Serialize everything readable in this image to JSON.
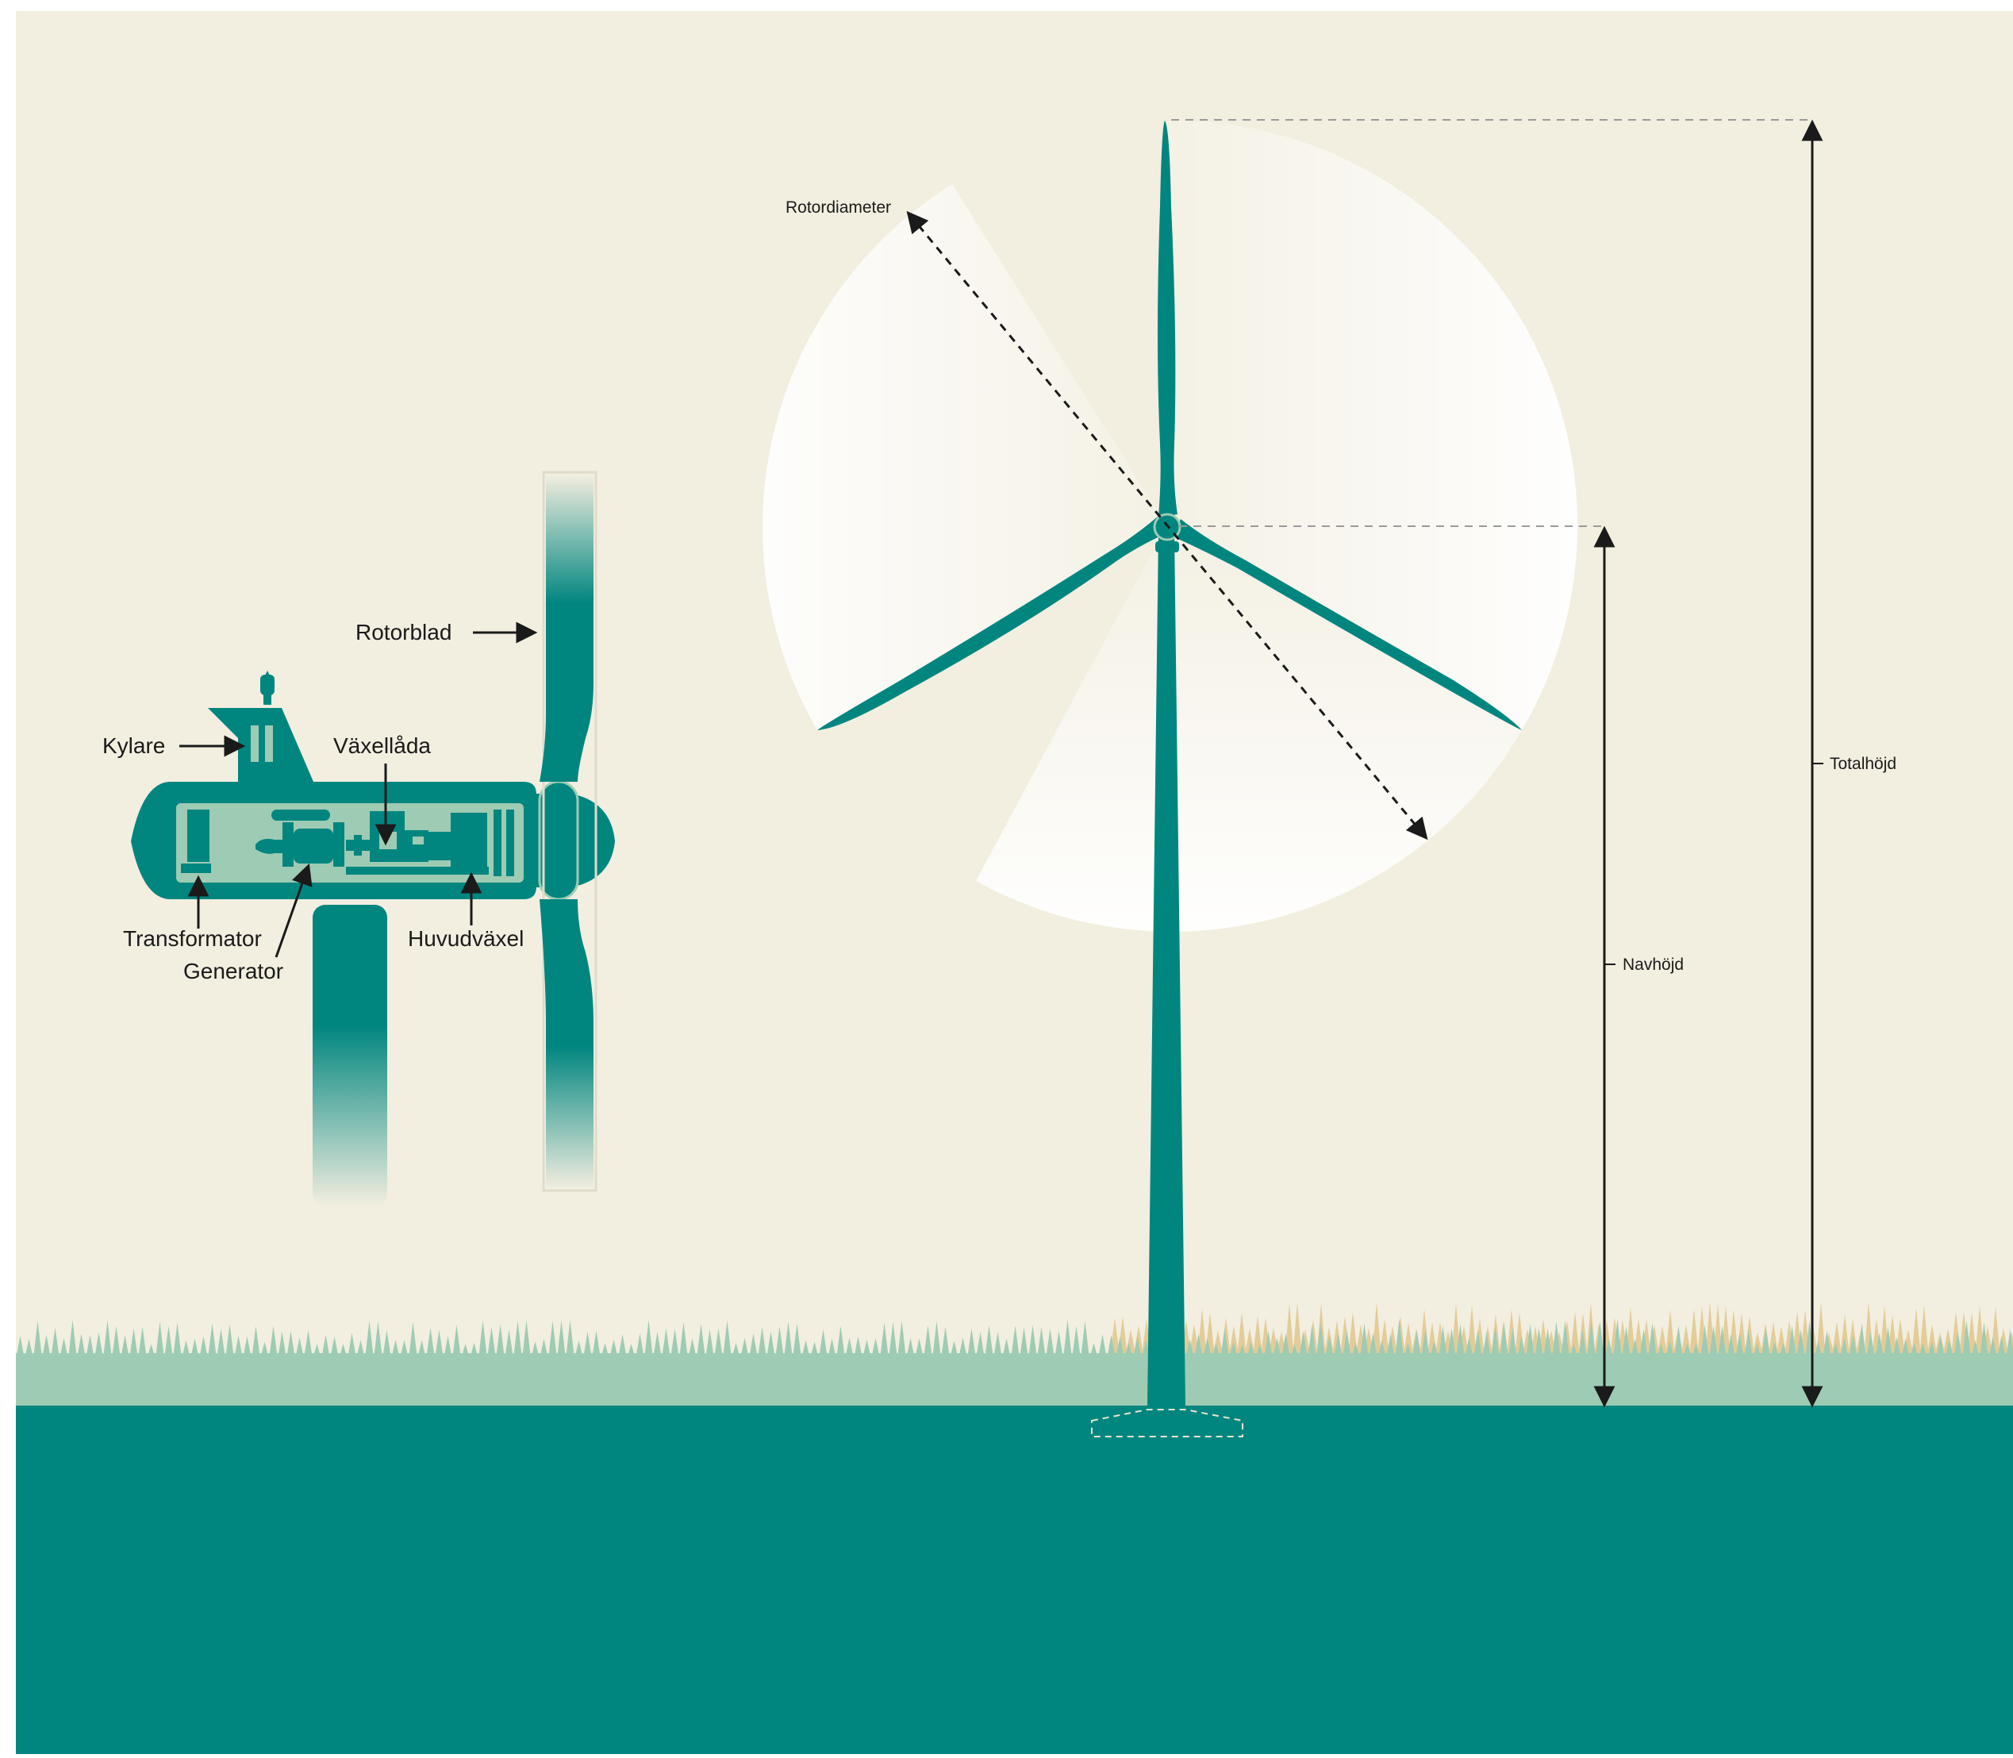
{
  "labels": {
    "rotorblad": "Rotorblad",
    "kylare": "Kylare",
    "vaxellada": "Växellåda",
    "transformator": "Transformator",
    "generator": "Generator",
    "huvudvaxel": "Huvudväxel",
    "rotordiameter": "Rotordiameter",
    "navhojd": "Navhöjd",
    "totalhojd": "Totalhöjd"
  },
  "colors": {
    "background": "#F2EEE0",
    "teal": "#00867F",
    "teal_light": "#9ECBB4",
    "forest_far": "#E3CC98",
    "ink": "#1A1A1A",
    "blade_sweep": "#FFFFFF"
  },
  "icons": {
    "arrow": "arrow-icon",
    "antenna": "antenna-icon"
  }
}
